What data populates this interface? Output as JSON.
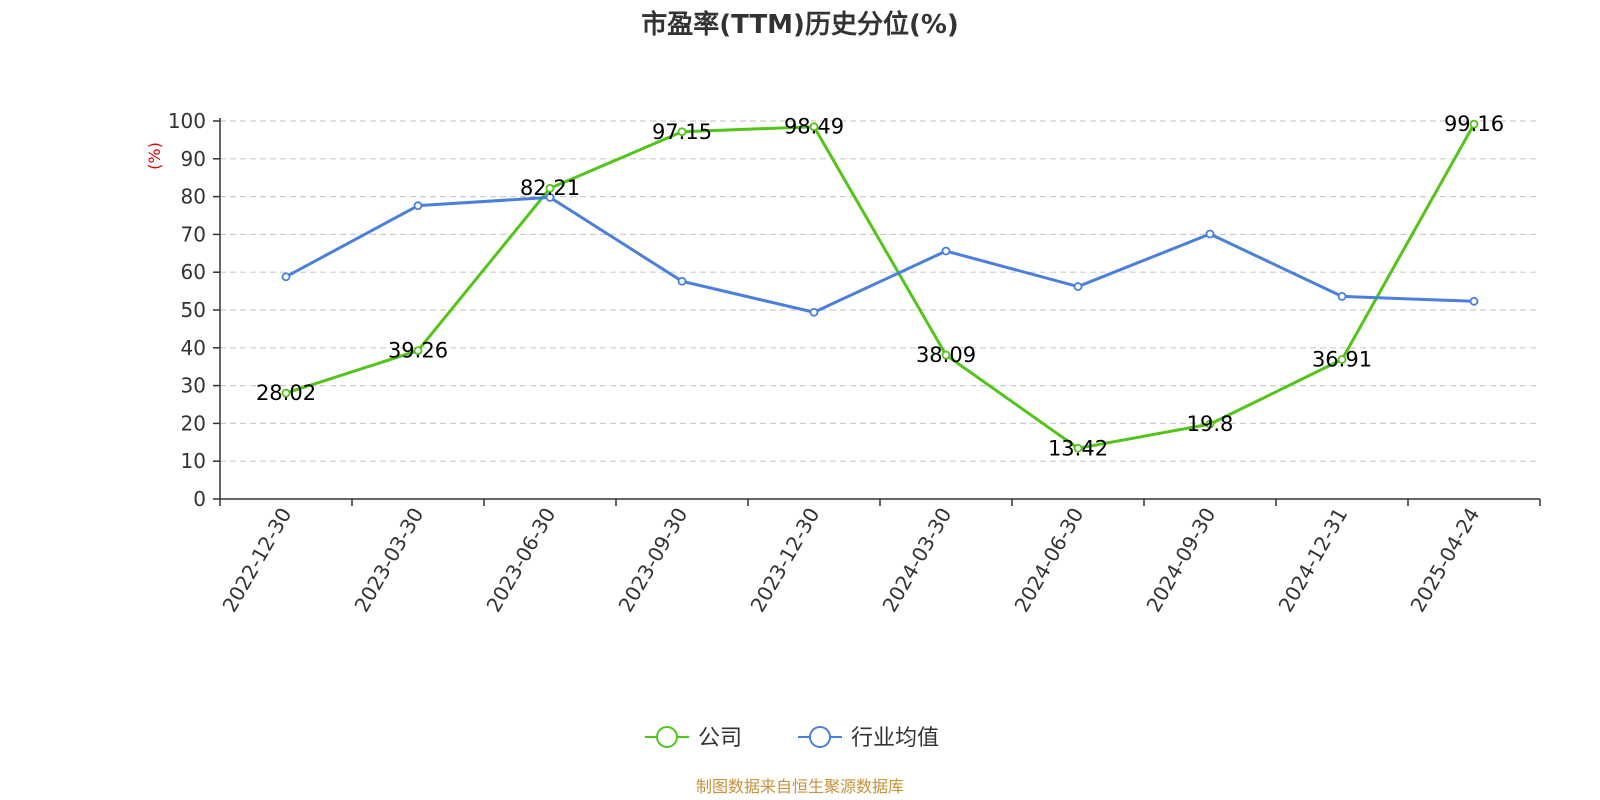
{
  "chart_data": {
    "type": "line",
    "title": "市盈率(TTM)历史分位(%)",
    "ylabel": "(%)",
    "ylim": [
      0,
      100
    ],
    "yticks": [
      0,
      10,
      20,
      30,
      40,
      50,
      60,
      70,
      80,
      90,
      100
    ],
    "categories": [
      "2022-12-30",
      "2023-03-30",
      "2023-06-30",
      "2023-09-30",
      "2023-12-30",
      "2024-03-30",
      "2024-06-30",
      "2024-09-30",
      "2024-12-31",
      "2025-04-24"
    ],
    "series": [
      {
        "name": "公司",
        "color": "#52c41a",
        "values": [
          28.02,
          39.26,
          82.21,
          97.15,
          98.49,
          38.09,
          13.42,
          19.8,
          36.91,
          99.16
        ],
        "labels": [
          "28.02",
          "39.26",
          "82.21",
          "97.15",
          "98.49",
          "38.09",
          "13.42",
          "19.8",
          "36.91",
          "99.16"
        ]
      },
      {
        "name": "行业均值",
        "color": "#4a7fdc",
        "values": [
          58.8,
          77.6,
          79.8,
          57.6,
          49.4,
          65.6,
          56.2,
          70.1,
          53.6,
          52.3
        ]
      }
    ],
    "grid": true,
    "legend_position": "bottom-center",
    "source": "制图数据来自恒生聚源数据库"
  }
}
